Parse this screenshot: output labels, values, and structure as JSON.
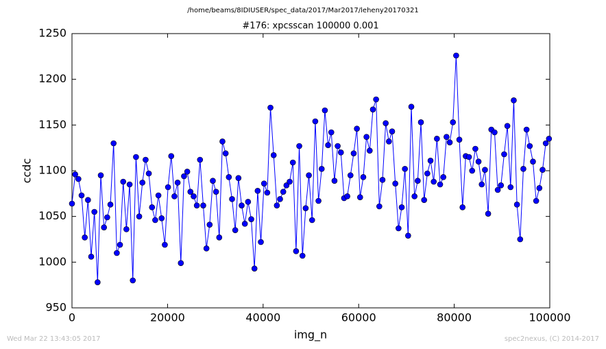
{
  "chart_data": {
    "type": "line",
    "suptitle": "/home/beams/8IDIUSER/spec_data/2017/Mar2017/leheny20170321",
    "title": "#176: xpcsscan 100000 0.001",
    "xlabel": "img_n",
    "ylabel": "ccdc",
    "timestamp": "Wed Mar 22 13:43:05 2017",
    "credit": "spec2nexus, (C) 2014-2017",
    "xlim": [
      0,
      100000
    ],
    "xticks": [
      0,
      20000,
      40000,
      60000,
      80000,
      100000
    ],
    "ylim": [
      950,
      1250
    ],
    "yticks": [
      950,
      1000,
      1050,
      1100,
      1150,
      1200,
      1250
    ],
    "grid": false,
    "x": [
      0,
      670,
      1340,
      2010,
      2680,
      3350,
      4020,
      4690,
      5360,
      6030,
      6700,
      7370,
      8040,
      8710,
      9380,
      10050,
      10720,
      11390,
      12060,
      12730,
      13400,
      14070,
      14740,
      15410,
      16080,
      16750,
      17420,
      18090,
      18760,
      19430,
      20100,
      20770,
      21440,
      22110,
      22780,
      23450,
      24120,
      24790,
      25460,
      26130,
      26800,
      27470,
      28140,
      28810,
      29480,
      30150,
      30820,
      31490,
      32160,
      32830,
      33500,
      34170,
      34840,
      35510,
      36180,
      36850,
      37520,
      38190,
      38860,
      39530,
      40200,
      40870,
      41540,
      42210,
      42880,
      43550,
      44220,
      44890,
      45560,
      46230,
      46900,
      47570,
      48240,
      48910,
      49580,
      50250,
      50920,
      51590,
      52260,
      52930,
      53600,
      54270,
      54940,
      55610,
      56280,
      56950,
      57620,
      58290,
      58960,
      59630,
      60300,
      60970,
      61640,
      62310,
      62980,
      63650,
      64320,
      64990,
      65660,
      66330,
      67000,
      67670,
      68340,
      69010,
      69680,
      70350,
      71020,
      71690,
      72360,
      73030,
      73700,
      74370,
      75040,
      75710,
      76380,
      77050,
      77720,
      78390,
      79060,
      79730,
      80400,
      81070,
      81740,
      82410,
      83080,
      83750,
      84420,
      85090,
      85760,
      86430,
      87100,
      87770,
      88440,
      89110,
      89780,
      90450,
      91120,
      91790,
      92460,
      93130,
      93800,
      94470,
      95140,
      95810,
      96480,
      97150,
      97820,
      98490,
      99160,
      99830
    ],
    "series": [
      {
        "color": "#0000ff",
        "values": [
          1064,
          1096,
          1091,
          1073,
          1027,
          1068,
          1006,
          1055,
          978,
          1095,
          1038,
          1049,
          1063,
          1130,
          1010,
          1019,
          1088,
          1036,
          1085,
          980,
          1115,
          1050,
          1087,
          1112,
          1097,
          1060,
          1046,
          1073,
          1048,
          1019,
          1082,
          1116,
          1072,
          1087,
          999,
          1094,
          1099,
          1077,
          1072,
          1062,
          1112,
          1062,
          1015,
          1041,
          1089,
          1077,
          1027,
          1132,
          1119,
          1093,
          1069,
          1035,
          1092,
          1062,
          1042,
          1066,
          1047,
          993,
          1078,
          1022,
          1086,
          1076,
          1169,
          1117,
          1062,
          1069,
          1077,
          1084,
          1088,
          1109,
          1012,
          1127,
          1007,
          1059,
          1095,
          1046,
          1154,
          1067,
          1102,
          1166,
          1128,
          1142,
          1089,
          1127,
          1120,
          1070,
          1072,
          1095,
          1119,
          1146,
          1071,
          1093,
          1137,
          1122,
          1167,
          1178,
          1061,
          1090,
          1152,
          1132,
          1143,
          1086,
          1037,
          1060,
          1102,
          1029,
          1170,
          1072,
          1089,
          1153,
          1068,
          1097,
          1111,
          1088,
          1135,
          1085,
          1093,
          1137,
          1131,
          1153,
          1226,
          1134,
          1060,
          1116,
          1115,
          1100,
          1124,
          1110,
          1085,
          1101,
          1053,
          1145,
          1142,
          1079,
          1084,
          1118,
          1149,
          1082,
          1177,
          1063,
          1025,
          1102,
          1145,
          1127,
          1110,
          1067,
          1081,
          1101,
          1130,
          1135
        ]
      }
    ]
  }
}
